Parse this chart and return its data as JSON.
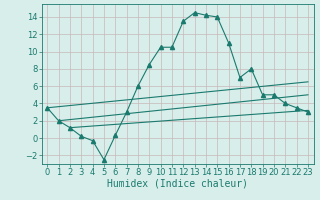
{
  "xlabel": "Humidex (Indice chaleur)",
  "x_values": [
    0,
    1,
    2,
    3,
    4,
    5,
    6,
    7,
    8,
    9,
    10,
    11,
    12,
    13,
    14,
    15,
    16,
    17,
    18,
    19,
    20,
    21,
    22,
    23
  ],
  "line1_y": [
    3.5,
    2.0,
    1.2,
    0.2,
    -0.3,
    -2.5,
    0.3,
    3.0,
    6.0,
    8.5,
    10.5,
    10.5,
    13.5,
    14.5,
    14.2,
    14.0,
    11.0,
    7.0,
    8.0,
    5.0,
    5.0,
    4.0,
    3.5,
    3.0
  ],
  "line2_x": [
    0,
    23
  ],
  "line2_y": [
    3.5,
    6.5
  ],
  "line3_x": [
    1,
    23
  ],
  "line3_y": [
    2.0,
    5.0
  ],
  "line4_x": [
    2,
    23
  ],
  "line4_y": [
    1.2,
    3.2
  ],
  "line_color": "#1a7a6e",
  "bg_color": "#d8eeeb",
  "grid_color": "#c0ddd9",
  "marker": "^",
  "marker_size": 3,
  "ylim": [
    -3,
    15.5
  ],
  "yticks": [
    -2,
    0,
    2,
    4,
    6,
    8,
    10,
    12,
    14
  ],
  "xticks": [
    0,
    1,
    2,
    3,
    4,
    5,
    6,
    7,
    8,
    9,
    10,
    11,
    12,
    13,
    14,
    15,
    16,
    17,
    18,
    19,
    20,
    21,
    22,
    23
  ],
  "xlabel_fontsize": 7,
  "tick_fontsize": 6
}
